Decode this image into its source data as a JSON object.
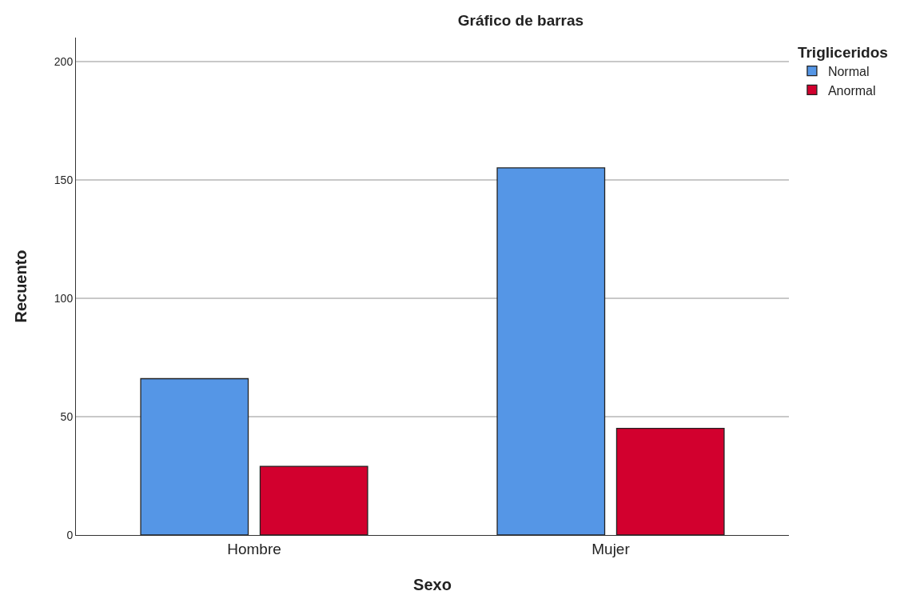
{
  "chart_data": {
    "type": "bar",
    "title": "Gráfico de barras",
    "xlabel": "Sexo",
    "ylabel": "Recuento",
    "legend_title": "Trigliceridos",
    "categories": [
      "Hombre",
      "Mujer"
    ],
    "series": [
      {
        "name": "Normal",
        "color": "#5596e6",
        "values": [
          66,
          155
        ]
      },
      {
        "name": "Anormal",
        "color": "#d2002e",
        "values": [
          29,
          45
        ]
      }
    ],
    "ylim": [
      0,
      210
    ],
    "yticks": [
      0,
      50,
      100,
      150,
      200
    ],
    "grid": "y",
    "legend": "top right"
  }
}
